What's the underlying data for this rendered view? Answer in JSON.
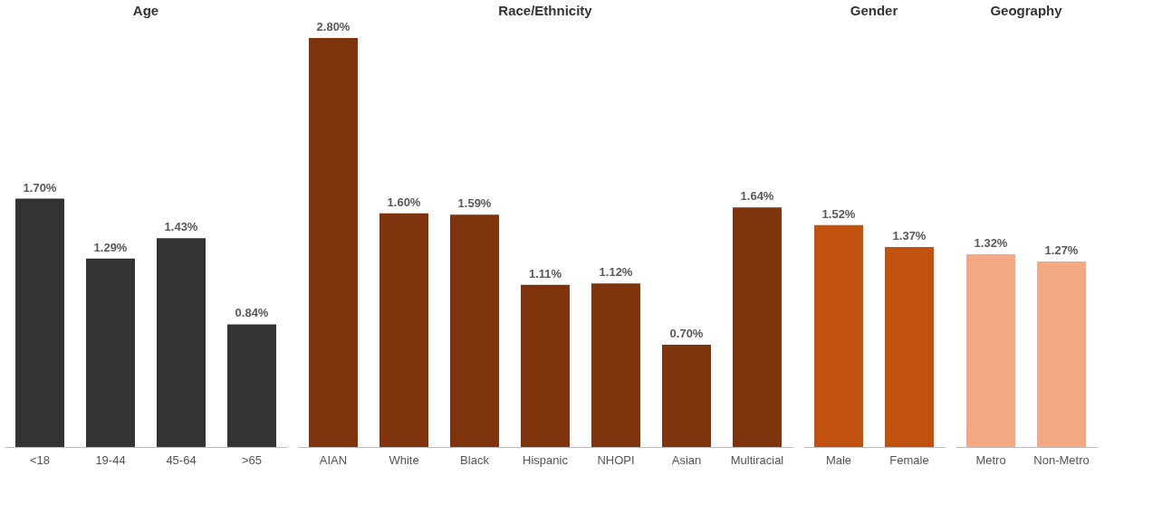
{
  "chart_data": [
    {
      "type": "bar",
      "title": "Age",
      "categories": [
        "<18",
        "19-44",
        "45-64",
        ">65"
      ],
      "values": [
        1.7,
        1.29,
        1.43,
        0.84
      ],
      "value_labels": [
        "1.70%",
        "1.29%",
        "1.43%",
        "0.84%"
      ],
      "color": "#333333"
    },
    {
      "type": "bar",
      "title": "Race/Ethnicity",
      "categories": [
        "AIAN",
        "White",
        "Black",
        "Hispanic",
        "NHOPI",
        "Asian",
        "Multiracial"
      ],
      "values": [
        2.8,
        1.6,
        1.59,
        1.11,
        1.12,
        0.7,
        1.64
      ],
      "value_labels": [
        "2.80%",
        "1.60%",
        "1.59%",
        "1.11%",
        "1.12%",
        "0.70%",
        "1.64%"
      ],
      "color": "#7f340d"
    },
    {
      "type": "bar",
      "title": "Gender",
      "categories": [
        "Male",
        "Female"
      ],
      "values": [
        1.52,
        1.37
      ],
      "value_labels": [
        "1.52%",
        "1.37%"
      ],
      "color": "#c0510f"
    },
    {
      "type": "bar",
      "title": "Geography",
      "categories": [
        "Metro",
        "Non-Metro"
      ],
      "values": [
        1.32,
        1.27
      ],
      "value_labels": [
        "1.32%",
        "1.27%"
      ],
      "color": "#f4a886"
    }
  ]
}
